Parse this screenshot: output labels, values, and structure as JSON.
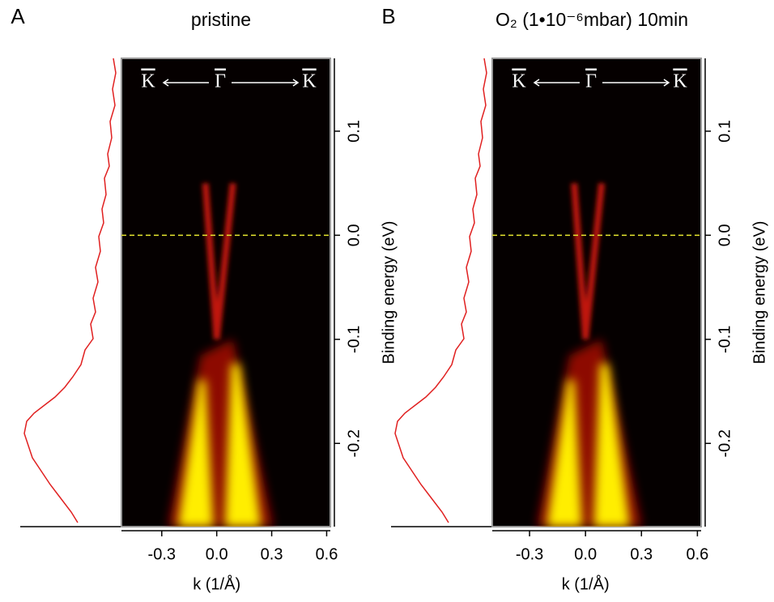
{
  "chart_data": [
    {
      "type": "heatmap",
      "panel_label": "A",
      "title": "pristine",
      "xlabel": "k (1/Å)",
      "ylabel": "Binding energy (eV)",
      "xlim": [
        -0.52,
        0.62
      ],
      "ylim": [
        -0.28,
        0.17
      ],
      "xticks": [
        -0.3,
        {
          "value": 0,
          "label": "0.0"
        },
        0.3,
        0.6
      ],
      "yticks": [
        0.1,
        {
          "value": 0,
          "label": "0.0"
        },
        -0.1,
        -0.2
      ],
      "reference_line": {
        "value": 0,
        "color": "#e8e830"
      },
      "annotations": [
        "K",
        "Γ",
        "K"
      ]
    },
    {
      "type": "heatmap",
      "panel_label": "B",
      "title": "O₂ (1•10⁻⁶mbar) 10min",
      "xlabel": "k (1/Å)",
      "ylabel": "Binding energy (eV)",
      "xlim": [
        -0.5,
        0.62
      ],
      "ylim": [
        -0.28,
        0.17
      ],
      "xticks": [
        -0.3,
        {
          "value": 0,
          "label": "0.0"
        },
        0.3,
        0.6
      ],
      "yticks": [
        0.1,
        {
          "value": 0,
          "label": "0.0"
        },
        -0.1,
        -0.2
      ],
      "reference_line": {
        "value": 0,
        "color": "#e8e830"
      },
      "annotations": [
        "K",
        "Γ",
        "K"
      ]
    }
  ]
}
